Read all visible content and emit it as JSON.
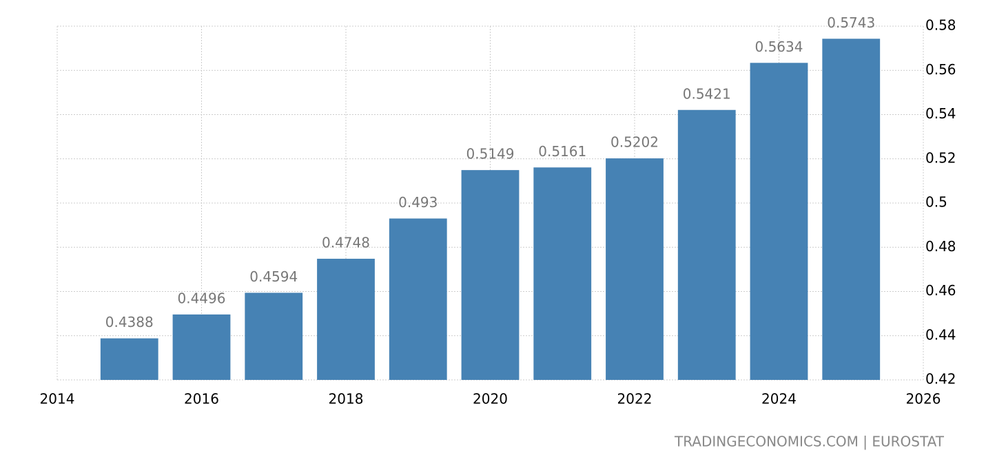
{
  "chart_data": {
    "type": "bar",
    "x": [
      2015,
      2016,
      2017,
      2018,
      2019,
      2020,
      2021,
      2022,
      2023,
      2024,
      2025
    ],
    "values": [
      0.4388,
      0.4496,
      0.4594,
      0.4748,
      0.493,
      0.5149,
      0.5161,
      0.5202,
      0.5421,
      0.5634,
      0.5743
    ],
    "color": "#4682b4",
    "xlim": [
      2014,
      2026
    ],
    "xticks": [
      2014,
      2016,
      2018,
      2020,
      2022,
      2024,
      2026
    ],
    "ylim": [
      0.42,
      0.58
    ],
    "yticks": [
      0.42,
      0.44,
      0.46,
      0.48,
      0.5,
      0.52,
      0.54,
      0.56,
      0.58
    ],
    "grid": true,
    "source": "TRADINGECONOMICS.COM | EUROSTAT"
  }
}
